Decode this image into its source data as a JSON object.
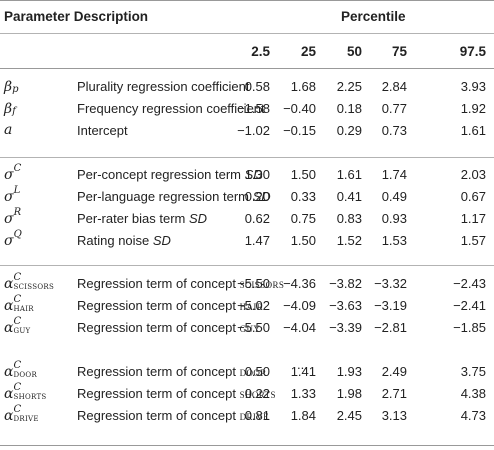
{
  "header": {
    "param_desc": "Parameter Description",
    "percentile": "Percentile",
    "cols": [
      "2.5",
      "25",
      "50",
      "75",
      "97.5"
    ]
  },
  "rows": [
    {
      "sym": "β",
      "sub": "p",
      "sup": "",
      "desc": "Plurality regression coefficient",
      "desc_em": "",
      "concept": "",
      "vals": [
        "0.58",
        "1.68",
        "2.25",
        "2.84",
        "3.93"
      ]
    },
    {
      "sym": "β",
      "sub": "f",
      "sup": "",
      "desc": "Frequency regression coefficient",
      "desc_em": "",
      "concept": "",
      "vals": [
        "−1.58",
        "−0.40",
        "0.18",
        "0.77",
        "1.92"
      ]
    },
    {
      "sym": "a",
      "sub": "",
      "sup": "",
      "desc": "Intercept",
      "desc_em": "",
      "concept": "",
      "vals": [
        "−1.02",
        "−0.15",
        "0.29",
        "0.73",
        "1.61"
      ]
    },
    {
      "sym": "σ",
      "sub": "",
      "sup": "C",
      "desc": "Per-concept regression term ",
      "desc_em": "SD",
      "concept": "",
      "vals": [
        "1.30",
        "1.50",
        "1.61",
        "1.74",
        "2.03"
      ]
    },
    {
      "sym": "σ",
      "sub": "",
      "sup": "L",
      "desc": "Per-language regression term ",
      "desc_em": "SD",
      "concept": "",
      "vals": [
        "0.20",
        "0.33",
        "0.41",
        "0.49",
        "0.67"
      ]
    },
    {
      "sym": "σ",
      "sub": "",
      "sup": "R",
      "desc": "Per-rater bias term ",
      "desc_em": "SD",
      "concept": "",
      "vals": [
        "0.62",
        "0.75",
        "0.83",
        "0.93",
        "1.17"
      ]
    },
    {
      "sym": "σ",
      "sub": "",
      "sup": "Q",
      "desc": "Rating noise ",
      "desc_em": "SD",
      "concept": "",
      "vals": [
        "1.47",
        "1.50",
        "1.52",
        "1.53",
        "1.57"
      ]
    },
    {
      "sym": "α",
      "sub": "scissors",
      "sup": "C",
      "desc": "Regression term of concept ",
      "desc_em": "",
      "concept": "scissors",
      "vals": [
        "−5.50",
        "−4.36",
        "−3.82",
        "−3.32",
        "−2.43"
      ]
    },
    {
      "sym": "α",
      "sub": "hair",
      "sup": "C",
      "desc": "Regression term of concept ",
      "desc_em": "",
      "concept": "hair",
      "vals": [
        "−5.02",
        "−4.09",
        "−3.63",
        "−3.19",
        "−2.41"
      ]
    },
    {
      "sym": "α",
      "sub": "guy",
      "sup": "C",
      "desc": "Regression term of concept ",
      "desc_em": "",
      "concept": "guy",
      "vals": [
        "−5.50",
        "−4.04",
        "−3.39",
        "−2.81",
        "−1.85"
      ]
    },
    {
      "sym": "α",
      "sub": "door",
      "sup": "C",
      "desc": "Regression term of concept ",
      "desc_em": "",
      "concept": "door",
      "vals": [
        "0.50",
        "1.41",
        "1.93",
        "2.49",
        "3.75"
      ]
    },
    {
      "sym": "α",
      "sub": "shorts",
      "sup": "C",
      "desc": "Regression term of concept ",
      "desc_em": "",
      "concept": "shorts",
      "vals": [
        "0.22",
        "1.33",
        "1.98",
        "2.71",
        "4.38"
      ]
    },
    {
      "sym": "α",
      "sub": "drive",
      "sup": "C",
      "desc": "Regression term of concept ",
      "desc_em": "",
      "concept": "drive",
      "vals": [
        "0.81",
        "1.84",
        "2.45",
        "3.13",
        "4.73"
      ]
    }
  ],
  "ellipsis": "..."
}
